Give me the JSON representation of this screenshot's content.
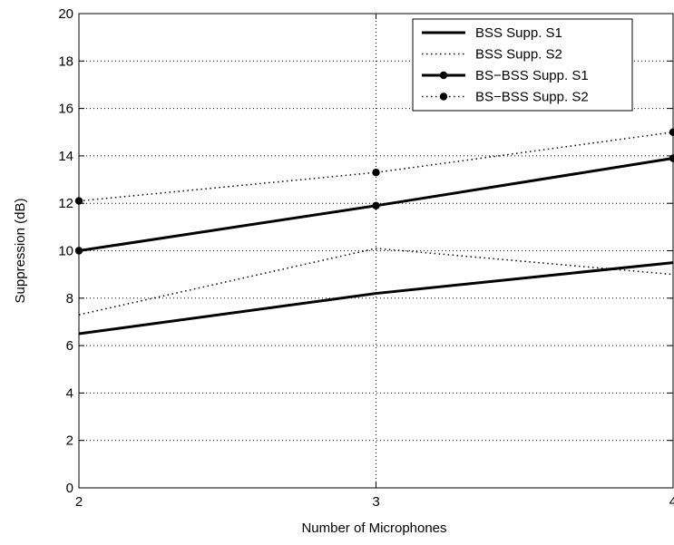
{
  "chart_data": {
    "type": "line",
    "xlabel": "Number of Microphones",
    "ylabel": "Suppression (dB)",
    "xlim": [
      2,
      4
    ],
    "ylim": [
      0,
      20
    ],
    "x_ticks": [
      2,
      3,
      4
    ],
    "y_ticks": [
      0,
      2,
      4,
      6,
      8,
      10,
      12,
      14,
      16,
      18,
      20
    ],
    "x_tick_labels": [
      "2",
      "3",
      "4"
    ],
    "y_tick_labels": [
      "0",
      "2",
      "4",
      "6",
      "8",
      "10",
      "12",
      "14",
      "16",
      "18",
      "20"
    ],
    "grid": true,
    "legend_position": "top-right",
    "x": [
      2,
      3,
      4
    ],
    "series": [
      {
        "name": "BSS Supp. S1",
        "values": [
          6.5,
          8.2,
          9.5
        ],
        "style": "solid",
        "marker": "none",
        "color": "#000000"
      },
      {
        "name": "BSS Supp. S2",
        "values": [
          7.3,
          10.1,
          9.0
        ],
        "style": "dotted",
        "marker": "none",
        "color": "#000000"
      },
      {
        "name": "BS−BSS Supp. S1",
        "values": [
          10.0,
          11.9,
          13.9
        ],
        "style": "solid",
        "marker": "dot",
        "color": "#000000"
      },
      {
        "name": "BS−BSS Supp. S2",
        "values": [
          12.1,
          13.3,
          15.0
        ],
        "style": "dotted",
        "marker": "dot",
        "color": "#000000"
      }
    ]
  }
}
